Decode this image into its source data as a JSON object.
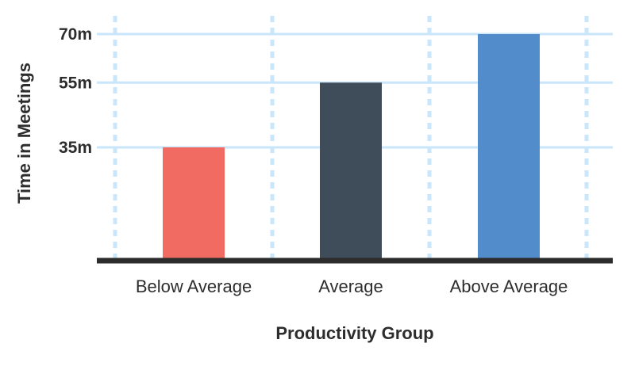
{
  "chart_data": {
    "type": "bar",
    "categories": [
      "Below Average",
      "Average",
      "Above Average"
    ],
    "values": [
      35,
      55,
      70
    ],
    "unit_suffix": "m",
    "yticks": [
      35,
      55,
      70
    ],
    "ylim": [
      0,
      70
    ],
    "xlabel": "Productivity Group",
    "ylabel": "Time in Meetings",
    "grid": true,
    "legend": "none",
    "colors": {
      "bars": [
        "#f26b63",
        "#3f4c59",
        "#538ccb"
      ],
      "grid": "#c9e6fb",
      "baseline": "#2c2c2c",
      "text": "#2d2d2d"
    }
  }
}
